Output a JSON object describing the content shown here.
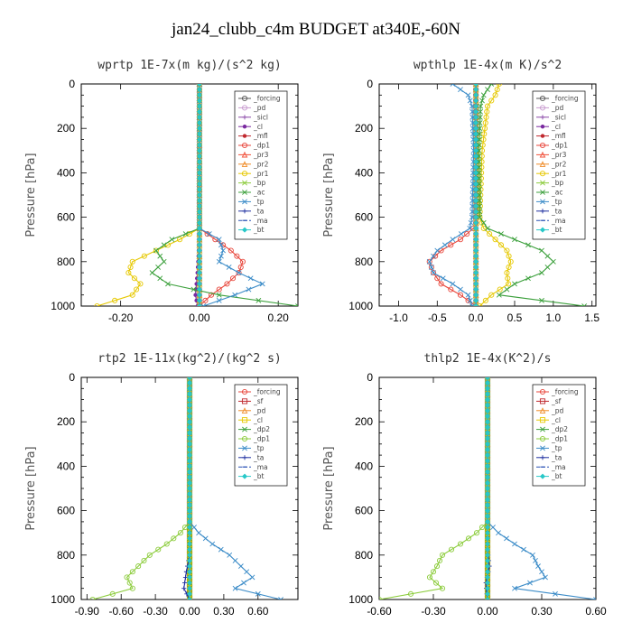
{
  "figure": {
    "title": "jan24_clubb_c4m  BUDGET at340E,-60N"
  },
  "chart_data": [
    {
      "type": "line",
      "title": "wprtp   1E-7x(m kg)/(s^2 kg)",
      "ylabel": "Pressure [hPa]",
      "ylim": [
        1000,
        0
      ],
      "xlim": [
        -0.3,
        0.25
      ],
      "xticks": [
        -0.2,
        0.0,
        0.2
      ],
      "xtick_labels": [
        "-0.20",
        "0.00",
        "0.20"
      ],
      "yticks": [
        0,
        200,
        400,
        600,
        800,
        1000
      ],
      "legend_position": "top-right",
      "series": [
        {
          "name": "_forcing",
          "color": "#555555",
          "marker": "circle",
          "p": [
            0,
            1000
          ],
          "x": [
            0,
            0
          ]
        },
        {
          "name": "_pd",
          "color": "#c89bd0",
          "marker": "circle",
          "p": [
            0,
            1000
          ],
          "x": [
            0,
            0
          ]
        },
        {
          "name": "_sicl",
          "color": "#8b4aa8",
          "marker": "plus",
          "p": [
            0,
            1000
          ],
          "x": [
            0,
            0
          ]
        },
        {
          "name": "_cl",
          "color": "#7a2aa0",
          "marker": "dot",
          "p": [
            0,
            700,
            850,
            950,
            1000
          ],
          "x": [
            0,
            0,
            -0.005,
            -0.01,
            -0.005
          ]
        },
        {
          "name": "_mfl",
          "color": "#c0282e",
          "marker": "dot",
          "p": [
            0,
            1000
          ],
          "x": [
            0,
            0
          ]
        },
        {
          "name": "_dp1",
          "color": "#e8463b",
          "marker": "circle",
          "p": [
            0,
            650,
            700,
            750,
            800,
            850,
            900,
            950,
            1000
          ],
          "x": [
            0,
            0.0,
            0.04,
            0.08,
            0.11,
            0.1,
            0.07,
            0.03,
            0.0
          ]
        },
        {
          "name": "_pr3",
          "color": "#f0503a",
          "marker": "triangle",
          "p": [
            0,
            1000
          ],
          "x": [
            0,
            0
          ]
        },
        {
          "name": "_pr2",
          "color": "#f08c28",
          "marker": "triangle",
          "p": [
            0,
            1000
          ],
          "x": [
            0,
            0
          ]
        },
        {
          "name": "_pr1",
          "color": "#e6c800",
          "marker": "circle",
          "p": [
            0,
            650,
            700,
            750,
            800,
            850,
            900,
            950,
            1000
          ],
          "x": [
            0,
            0.0,
            -0.05,
            -0.11,
            -0.17,
            -0.18,
            -0.15,
            -0.17,
            -0.26
          ]
        },
        {
          "name": "_bp",
          "color": "#8ccc3c",
          "marker": "cross",
          "p": [
            0,
            1000
          ],
          "x": [
            0,
            0
          ]
        },
        {
          "name": "_ac",
          "color": "#3ca03c",
          "marker": "cross",
          "p": [
            0,
            650,
            700,
            750,
            800,
            850,
            900,
            950,
            1000
          ],
          "x": [
            0,
            0.0,
            -0.07,
            -0.11,
            -0.09,
            -0.12,
            -0.08,
            0.05,
            0.25
          ]
        },
        {
          "name": "_tp",
          "color": "#3c8cc8",
          "marker": "cross",
          "p": [
            0,
            650,
            700,
            750,
            800,
            850,
            900,
            950,
            1000
          ],
          "x": [
            0,
            0.0,
            0.05,
            0.06,
            0.05,
            0.1,
            0.16,
            0.09,
            0.01
          ]
        },
        {
          "name": "_ta",
          "color": "#1e2fa0",
          "marker": "plus",
          "p": [
            0,
            1000
          ],
          "x": [
            0,
            0
          ]
        },
        {
          "name": "_ma",
          "color": "#2850b4",
          "marker": "dash",
          "p": [
            0,
            1000
          ],
          "x": [
            0,
            0
          ]
        },
        {
          "name": "_bt",
          "color": "#28c8c8",
          "marker": "diamond",
          "p": [
            0,
            1000
          ],
          "x": [
            0,
            0
          ]
        }
      ]
    },
    {
      "type": "line",
      "title": "wpthlp   1E-4x(m K)/s^2",
      "ylabel": "Pressure [hPa]",
      "ylim": [
        1000,
        0
      ],
      "xlim": [
        -1.25,
        1.55
      ],
      "xticks": [
        -1.0,
        -0.5,
        0.0,
        0.5,
        1.0,
        1.5
      ],
      "xtick_labels": [
        "-1.0",
        "-0.5",
        "0.0",
        "0.5",
        "1.0",
        "1.5"
      ],
      "yticks": [
        0,
        200,
        400,
        600,
        800,
        1000
      ],
      "legend_position": "top-right",
      "series": [
        {
          "name": "_forcing",
          "color": "#555555",
          "marker": "circle",
          "p": [
            0,
            1000
          ],
          "x": [
            0,
            0
          ]
        },
        {
          "name": "_pd",
          "color": "#c89bd0",
          "marker": "circle",
          "p": [
            0,
            1000
          ],
          "x": [
            0,
            0
          ]
        },
        {
          "name": "_sicl",
          "color": "#8b4aa8",
          "marker": "plus",
          "p": [
            0,
            1000
          ],
          "x": [
            0,
            0
          ]
        },
        {
          "name": "_cl",
          "color": "#7a2aa0",
          "marker": "dot",
          "p": [
            0,
            1000
          ],
          "x": [
            0,
            0
          ]
        },
        {
          "name": "_mfl",
          "color": "#c0282e",
          "marker": "dot",
          "p": [
            0,
            1000
          ],
          "x": [
            0,
            0
          ]
        },
        {
          "name": "_dp1",
          "color": "#e8463b",
          "marker": "circle",
          "p": [
            0,
            640,
            700,
            750,
            800,
            850,
            900,
            950,
            1000
          ],
          "x": [
            0,
            0.0,
            -0.2,
            -0.45,
            -0.6,
            -0.55,
            -0.45,
            -0.2,
            0.0
          ]
        },
        {
          "name": "_pr3",
          "color": "#f0503a",
          "marker": "triangle",
          "p": [
            0,
            1000
          ],
          "x": [
            0,
            0
          ]
        },
        {
          "name": "_pr2",
          "color": "#f08c28",
          "marker": "triangle",
          "p": [
            0,
            1000
          ],
          "x": [
            0,
            0
          ]
        },
        {
          "name": "_pr1",
          "color": "#e6c800",
          "marker": "circle",
          "p": [
            0,
            50,
            100,
            300,
            600,
            650,
            700,
            750,
            800,
            850,
            900,
            950,
            1000
          ],
          "x": [
            0.3,
            0.25,
            0.15,
            0.08,
            0.05,
            0.1,
            0.25,
            0.4,
            0.45,
            0.4,
            0.42,
            0.2,
            0.05
          ]
        },
        {
          "name": "_bp",
          "color": "#8ccc3c",
          "marker": "cross",
          "p": [
            0,
            1000
          ],
          "x": [
            0,
            0
          ]
        },
        {
          "name": "_ac",
          "color": "#3ca03c",
          "marker": "cross",
          "p": [
            0,
            50,
            100,
            300,
            600,
            650,
            700,
            750,
            800,
            850,
            900,
            950,
            1000
          ],
          "x": [
            0.2,
            0.1,
            0.06,
            0.04,
            0.05,
            0.15,
            0.5,
            0.85,
            1.0,
            0.85,
            0.5,
            0.3,
            1.4
          ]
        },
        {
          "name": "_tp",
          "color": "#3c8cc8",
          "marker": "cross",
          "p": [
            0,
            50,
            100,
            300,
            600,
            650,
            700,
            750,
            800,
            850,
            900,
            950,
            1000
          ],
          "x": [
            -0.3,
            -0.1,
            -0.05,
            -0.03,
            -0.05,
            -0.08,
            -0.3,
            -0.5,
            -0.6,
            -0.55,
            -0.3,
            -0.1,
            -0.05
          ]
        },
        {
          "name": "_ta",
          "color": "#1e2fa0",
          "marker": "plus",
          "p": [
            0,
            1000
          ],
          "x": [
            0,
            0
          ]
        },
        {
          "name": "_ma",
          "color": "#2850b4",
          "marker": "dash",
          "p": [
            0,
            1000
          ],
          "x": [
            0,
            0
          ]
        },
        {
          "name": "_bt",
          "color": "#28c8c8",
          "marker": "diamond",
          "p": [
            0,
            1000
          ],
          "x": [
            0,
            0
          ]
        }
      ]
    },
    {
      "type": "line",
      "title": "rtp2   1E-11x(kg^2)/(kg^2 s)",
      "ylabel": "Pressure [hPa]",
      "ylim": [
        1000,
        0
      ],
      "xlim": [
        -0.95,
        0.95
      ],
      "xticks": [
        -0.9,
        -0.6,
        -0.3,
        0.0,
        0.3,
        0.6
      ],
      "xtick_labels": [
        "-0.90",
        "-0.60",
        "-0.30",
        "0.00",
        "0.30",
        "0.60"
      ],
      "yticks": [
        0,
        200,
        400,
        600,
        800,
        1000
      ],
      "legend_position": "top-right",
      "series": [
        {
          "name": "_forcing",
          "color": "#e8463b",
          "marker": "circle",
          "p": [
            0,
            1000
          ],
          "x": [
            0,
            0
          ]
        },
        {
          "name": "_sf",
          "color": "#c0282e",
          "marker": "square",
          "p": [
            0,
            1000
          ],
          "x": [
            0,
            0
          ]
        },
        {
          "name": "_pd",
          "color": "#f08c28",
          "marker": "triangle",
          "p": [
            0,
            1000
          ],
          "x": [
            0,
            0
          ]
        },
        {
          "name": "_cl",
          "color": "#e6c800",
          "marker": "square",
          "p": [
            0,
            1000
          ],
          "x": [
            0,
            0
          ]
        },
        {
          "name": "_dp2",
          "color": "#3ca03c",
          "marker": "cross",
          "p": [
            0,
            1000
          ],
          "x": [
            0,
            0
          ]
        },
        {
          "name": "_dp1",
          "color": "#8ccc3c",
          "marker": "circle",
          "p": [
            0,
            650,
            700,
            750,
            800,
            850,
            900,
            950,
            1000
          ],
          "x": [
            0,
            0.0,
            -0.08,
            -0.2,
            -0.35,
            -0.45,
            -0.55,
            -0.5,
            -0.85
          ]
        },
        {
          "name": "_tp",
          "color": "#3c8cc8",
          "marker": "cross",
          "p": [
            0,
            650,
            700,
            750,
            800,
            850,
            900,
            950,
            1000
          ],
          "x": [
            0,
            0.0,
            0.08,
            0.2,
            0.35,
            0.45,
            0.55,
            0.4,
            0.8
          ]
        },
        {
          "name": "_ta",
          "color": "#1e2fa0",
          "marker": "plus",
          "p": [
            0,
            800,
            880,
            950,
            1000
          ],
          "x": [
            0,
            0,
            -0.03,
            -0.05,
            0.0
          ]
        },
        {
          "name": "_ma",
          "color": "#2850b4",
          "marker": "dash",
          "p": [
            0,
            1000
          ],
          "x": [
            0,
            0
          ]
        },
        {
          "name": "_bt",
          "color": "#28c8c8",
          "marker": "diamond",
          "p": [
            0,
            1000
          ],
          "x": [
            0,
            0
          ]
        }
      ]
    },
    {
      "type": "line",
      "title": "thlp2   1E-4x(K^2)/s",
      "ylabel": "Pressure [hPa]",
      "ylim": [
        1000,
        0
      ],
      "xlim": [
        -0.6,
        0.6
      ],
      "xticks": [
        -0.6,
        -0.3,
        0.0,
        0.3,
        0.6
      ],
      "xtick_labels": [
        "-0.60",
        "-0.30",
        "0.00",
        "0.30",
        "0.60"
      ],
      "yticks": [
        0,
        200,
        400,
        600,
        800,
        1000
      ],
      "legend_position": "top-right",
      "series": [
        {
          "name": "_forcing",
          "color": "#e8463b",
          "marker": "circle",
          "p": [
            0,
            1000
          ],
          "x": [
            0,
            0
          ]
        },
        {
          "name": "_sf",
          "color": "#c0282e",
          "marker": "square",
          "p": [
            0,
            1000
          ],
          "x": [
            0,
            0
          ]
        },
        {
          "name": "_pd",
          "color": "#f08c28",
          "marker": "triangle",
          "p": [
            0,
            1000
          ],
          "x": [
            0,
            0
          ]
        },
        {
          "name": "_cl",
          "color": "#e6c800",
          "marker": "square",
          "p": [
            0,
            1000
          ],
          "x": [
            0,
            0
          ]
        },
        {
          "name": "_dp2",
          "color": "#3ca03c",
          "marker": "cross",
          "p": [
            0,
            1000
          ],
          "x": [
            0,
            0
          ]
        },
        {
          "name": "_dp1",
          "color": "#8ccc3c",
          "marker": "circle",
          "p": [
            0,
            650,
            700,
            750,
            800,
            850,
            900,
            950,
            1000
          ],
          "x": [
            0,
            0.0,
            -0.06,
            -0.15,
            -0.25,
            -0.28,
            -0.32,
            -0.25,
            -0.6
          ]
        },
        {
          "name": "_tp",
          "color": "#3c8cc8",
          "marker": "cross",
          "p": [
            0,
            650,
            700,
            750,
            800,
            850,
            900,
            950,
            1000
          ],
          "x": [
            0,
            0.0,
            0.06,
            0.15,
            0.25,
            0.28,
            0.32,
            0.15,
            0.6
          ]
        },
        {
          "name": "_ta",
          "color": "#1e2fa0",
          "marker": "plus",
          "p": [
            0,
            780,
            850,
            930,
            1000
          ],
          "x": [
            0,
            0,
            0.01,
            -0.01,
            0.0
          ]
        },
        {
          "name": "_ma",
          "color": "#2850b4",
          "marker": "dash",
          "p": [
            0,
            1000
          ],
          "x": [
            0,
            0
          ]
        },
        {
          "name": "_bt",
          "color": "#28c8c8",
          "marker": "diamond",
          "p": [
            0,
            1000
          ],
          "x": [
            0,
            0
          ]
        }
      ]
    }
  ]
}
